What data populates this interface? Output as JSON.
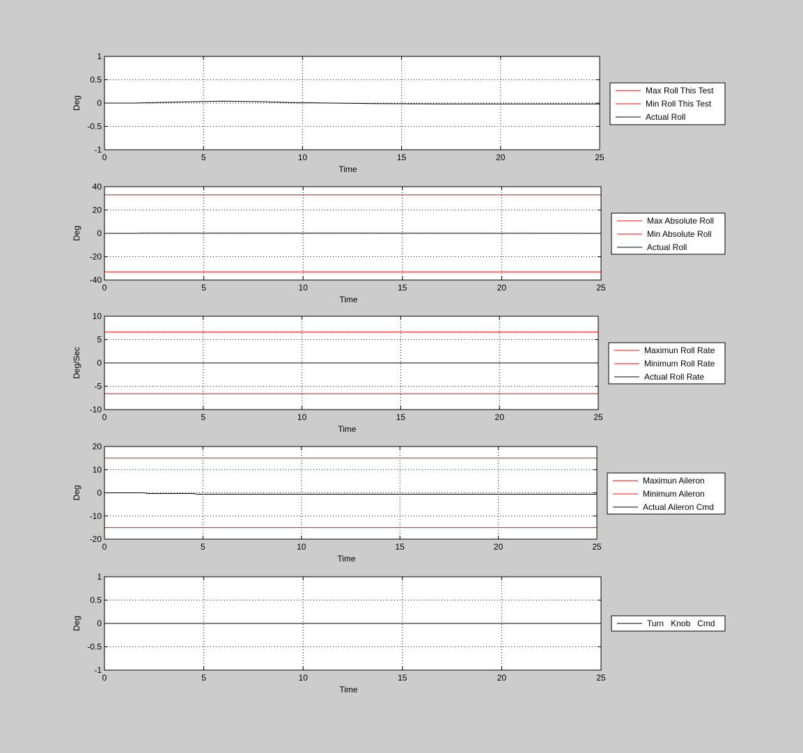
{
  "chart_data": [
    {
      "type": "line",
      "xlabel": "Time",
      "ylabel": "Deg",
      "xlim": [
        0,
        25
      ],
      "ylim": [
        -1,
        1
      ],
      "xticks": [
        "0",
        "5",
        "10",
        "15",
        "20",
        "25"
      ],
      "yticks": [
        "-1",
        "-0.5",
        "0",
        "0.5",
        "1"
      ],
      "grid": "dotted",
      "legend_position": "right",
      "legend": [
        "Max Roll This Test",
        "Min Roll This Test",
        "Actual Roll"
      ],
      "series": [
        {
          "name": "Max Roll This Test",
          "color": "#ff0000",
          "x": [],
          "y": []
        },
        {
          "name": "Min Roll This Test",
          "color": "#ff0000",
          "x": [],
          "y": []
        },
        {
          "name": "Actual Roll",
          "color": "#000000",
          "x": [
            0,
            1.5,
            2.5,
            4.5,
            6,
            8,
            9.5,
            11.5,
            13.5,
            17.5,
            25
          ],
          "y": [
            0,
            0,
            0.01,
            0.03,
            0.04,
            0.03,
            0.01,
            0,
            -0.01,
            -0.02,
            -0.02
          ]
        }
      ]
    },
    {
      "type": "line",
      "xlabel": "Time",
      "ylabel": "Deg",
      "xlim": [
        0,
        25
      ],
      "ylim": [
        -40,
        40
      ],
      "xticks": [
        "0",
        "5",
        "10",
        "15",
        "20",
        "25"
      ],
      "yticks": [
        "-40",
        "-20",
        "0",
        "20",
        "40"
      ],
      "grid": "dotted",
      "legend_position": "right",
      "legend": [
        "Max Absolute Roll",
        "Min Absolute Roll",
        "Actual Roll"
      ],
      "series": [
        {
          "name": "Max Absolute Roll",
          "color": "#ff0000",
          "x": [
            0,
            25
          ],
          "y": [
            33,
            33
          ]
        },
        {
          "name": "Min Absolute Roll",
          "color": "#ff0000",
          "x": [
            0,
            25
          ],
          "y": [
            -33,
            -33
          ]
        },
        {
          "name": "Actual Roll",
          "color": "#000000",
          "x": [
            0,
            1.5,
            2,
            11.5,
            25
          ],
          "y": [
            0,
            0,
            0.2,
            0.2,
            0
          ]
        }
      ]
    },
    {
      "type": "line",
      "xlabel": "Time",
      "ylabel": "Deg/Sec",
      "xlim": [
        0,
        25
      ],
      "ylim": [
        -10,
        10
      ],
      "xticks": [
        "0",
        "5",
        "10",
        "15",
        "20",
        "25"
      ],
      "yticks": [
        "-10",
        "-5",
        "0",
        "5",
        "10"
      ],
      "grid": "dotted",
      "legend_position": "right",
      "legend": [
        "Maximun Roll Rate",
        "Minimum Roll Rate",
        "Actual Roll Rate"
      ],
      "series": [
        {
          "name": "Maximun Roll Rate",
          "color": "#ff0000",
          "x": [
            0,
            25
          ],
          "y": [
            6.6,
            6.6
          ]
        },
        {
          "name": "Minimum Roll Rate",
          "color": "#ff0000",
          "x": [
            0,
            25
          ],
          "y": [
            -6.6,
            -6.6
          ]
        },
        {
          "name": "Actual Roll Rate",
          "color": "#000000",
          "x": [
            0,
            25
          ],
          "y": [
            0,
            0
          ]
        }
      ]
    },
    {
      "type": "line",
      "xlabel": "Time",
      "ylabel": "Deg",
      "xlim": [
        0,
        25
      ],
      "ylim": [
        -20,
        20
      ],
      "xticks": [
        "0",
        "5",
        "10",
        "15",
        "20",
        "25"
      ],
      "yticks": [
        "-20",
        "-10",
        "0",
        "10",
        "20"
      ],
      "grid": "dotted",
      "legend_position": "right",
      "legend": [
        "Maximun Aileron",
        "Minimum Aileron",
        "Actual Aileron Cmd"
      ],
      "series": [
        {
          "name": "Maximun Aileron",
          "color": "#ff0000",
          "x": [
            0,
            25
          ],
          "y": [
            15,
            15
          ]
        },
        {
          "name": "Minimum Aileron",
          "color": "#ff0000",
          "x": [
            0,
            25
          ],
          "y": [
            -15,
            -15
          ]
        },
        {
          "name": "Actual Aileron Cmd",
          "color": "#000000",
          "x": [
            0,
            2,
            2.2,
            4.5,
            4.7,
            25
          ],
          "y": [
            0,
            0,
            -0.3,
            -0.3,
            -0.6,
            -0.6
          ]
        }
      ]
    },
    {
      "type": "line",
      "xlabel": "Time",
      "ylabel": "Deg",
      "xlim": [
        0,
        25
      ],
      "ylim": [
        -1,
        1
      ],
      "xticks": [
        "0",
        "5",
        "10",
        "15",
        "20",
        "25"
      ],
      "yticks": [
        "-1",
        "-0.5",
        "0",
        "0.5",
        "1"
      ],
      "grid": "dotted",
      "legend_position": "right",
      "legend": [
        "Turn   Knob   Cmd"
      ],
      "series": [
        {
          "name": "Turn   Knob   Cmd",
          "color": "#000000",
          "x": [
            0,
            25
          ],
          "y": [
            0,
            0
          ]
        }
      ]
    }
  ]
}
